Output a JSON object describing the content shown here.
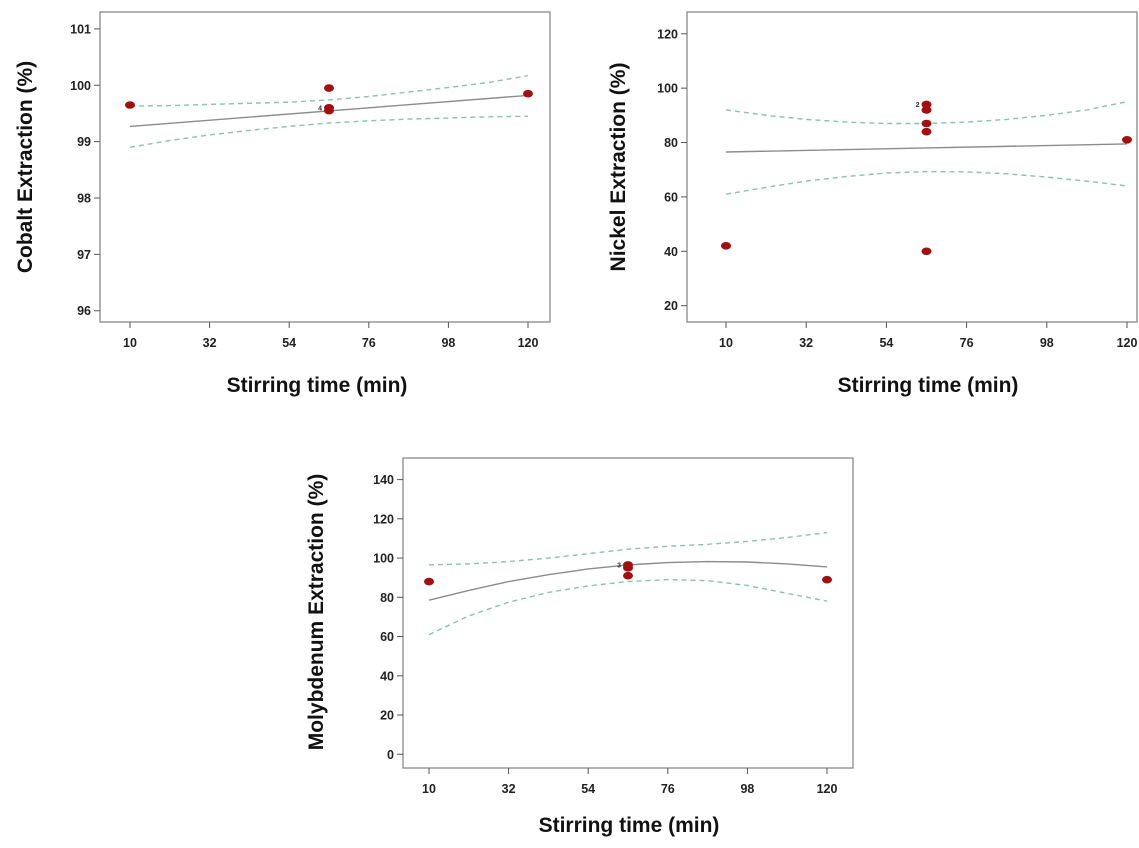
{
  "chart_data": [
    {
      "type": "scatter",
      "xlabel": "Stirring time (min)",
      "ylabel": "Cobalt Extraction (%)",
      "xticks": [
        10,
        32,
        54,
        76,
        98,
        120
      ],
      "yticks": [
        96,
        97,
        98,
        99,
        100,
        101
      ],
      "xlim": [
        10,
        120
      ],
      "ylim": [
        95.8,
        101.3
      ],
      "points": [
        {
          "x": 10,
          "y": 99.65
        },
        {
          "x": 65,
          "y": 99.95
        },
        {
          "x": 65,
          "y": 99.6
        },
        {
          "x": 65,
          "y": 99.55
        },
        {
          "x": 120,
          "y": 99.85
        }
      ],
      "count_labels": [
        {
          "x": 65,
          "y": 99.6,
          "text": "4"
        }
      ],
      "fit_line": {
        "x": [
          10,
          120
        ],
        "y": [
          99.27,
          99.82
        ]
      },
      "ci_upper": {
        "x": [
          10,
          21,
          32,
          43,
          54,
          65,
          76,
          87,
          98,
          109,
          120
        ],
        "y": [
          99.63,
          99.64,
          99.66,
          99.68,
          99.7,
          99.74,
          99.8,
          99.88,
          99.96,
          100.05,
          100.17
        ]
      },
      "ci_lower": {
        "x": [
          10,
          21,
          32,
          43,
          54,
          65,
          76,
          87,
          98,
          109,
          120
        ],
        "y": [
          98.9,
          99.02,
          99.12,
          99.2,
          99.27,
          99.33,
          99.37,
          99.4,
          99.42,
          99.44,
          99.45
        ]
      }
    },
    {
      "type": "scatter",
      "xlabel": "Stirring time (min)",
      "ylabel": "Nickel Extraction (%)",
      "xticks": [
        10,
        32,
        54,
        76,
        98,
        120
      ],
      "yticks": [
        20,
        40,
        60,
        80,
        100,
        120
      ],
      "xlim": [
        10,
        120
      ],
      "ylim": [
        14,
        128
      ],
      "points": [
        {
          "x": 10,
          "y": 42
        },
        {
          "x": 65,
          "y": 94
        },
        {
          "x": 65,
          "y": 92
        },
        {
          "x": 65,
          "y": 87
        },
        {
          "x": 65,
          "y": 84
        },
        {
          "x": 65,
          "y": 40
        },
        {
          "x": 120,
          "y": 81
        }
      ],
      "count_labels": [
        {
          "x": 65,
          "y": 94,
          "text": "2"
        }
      ],
      "fit_line": {
        "x": [
          10,
          120
        ],
        "y": [
          76.5,
          79.5
        ]
      },
      "ci_upper": {
        "x": [
          10,
          21,
          32,
          43,
          54,
          65,
          76,
          87,
          98,
          109,
          120
        ],
        "y": [
          92,
          90,
          88.5,
          87.5,
          87,
          87,
          87.5,
          88.5,
          90,
          92,
          95
        ]
      },
      "ci_lower": {
        "x": [
          10,
          21,
          32,
          43,
          54,
          65,
          76,
          87,
          98,
          109,
          120
        ],
        "y": [
          61,
          63.5,
          65.8,
          67.5,
          68.8,
          69.3,
          69.2,
          68.5,
          67.3,
          65.8,
          64
        ]
      }
    },
    {
      "type": "scatter",
      "xlabel": "Stirring time (min)",
      "ylabel": "Molybdenum Extraction (%)",
      "xticks": [
        10,
        32,
        54,
        76,
        98,
        120
      ],
      "yticks": [
        0,
        20,
        40,
        60,
        80,
        100,
        120,
        140
      ],
      "xlim": [
        10,
        120
      ],
      "ylim": [
        -7,
        151
      ],
      "points": [
        {
          "x": 10,
          "y": 88
        },
        {
          "x": 65,
          "y": 96.5
        },
        {
          "x": 65,
          "y": 95
        },
        {
          "x": 65,
          "y": 91
        },
        {
          "x": 120,
          "y": 89
        }
      ],
      "count_labels": [
        {
          "x": 65,
          "y": 96.5,
          "text": "3"
        }
      ],
      "fit_line": {
        "x": [
          10,
          21,
          32,
          43,
          54,
          65,
          76,
          87,
          98,
          109,
          120
        ],
        "y": [
          78.5,
          83.5,
          88,
          91.5,
          94.5,
          96.5,
          97.7,
          98.2,
          98,
          97,
          95.5
        ]
      },
      "ci_upper": {
        "x": [
          10,
          21,
          32,
          43,
          54,
          65,
          76,
          87,
          98,
          109,
          120
        ],
        "y": [
          96.5,
          97,
          98.2,
          100,
          102.2,
          104.5,
          106,
          107,
          108.5,
          110.5,
          113
        ]
      },
      "ci_lower": {
        "x": [
          10,
          21,
          32,
          43,
          54,
          65,
          76,
          87,
          98,
          109,
          120
        ],
        "y": [
          61,
          70.5,
          77.5,
          82.5,
          85.8,
          88,
          89,
          88.5,
          86,
          82,
          78
        ]
      }
    }
  ]
}
